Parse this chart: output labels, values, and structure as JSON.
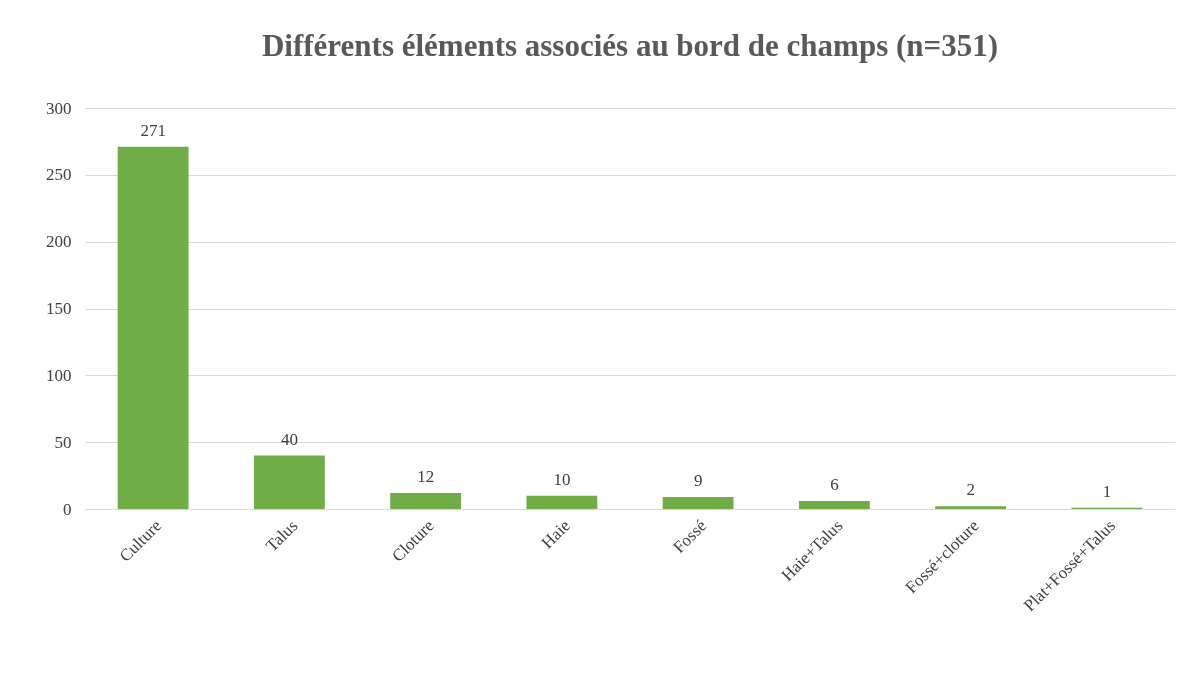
{
  "chart_data": {
    "type": "bar",
    "title": "Différents éléments associés au bord de champs (n=351)",
    "categories": [
      "Culture",
      "Talus",
      "Cloture",
      "Haie",
      "Fossé",
      "Haie+Talus",
      "Fossé+cloture",
      "Plat+Fossé+Talus"
    ],
    "values": [
      271,
      40,
      12,
      10,
      9,
      6,
      2,
      1
    ],
    "color": "#70ad47",
    "ylim": [
      0,
      300
    ],
    "yticks": [
      0,
      50,
      100,
      150,
      200,
      250,
      300
    ],
    "grid": "y",
    "data_labels": true
  }
}
